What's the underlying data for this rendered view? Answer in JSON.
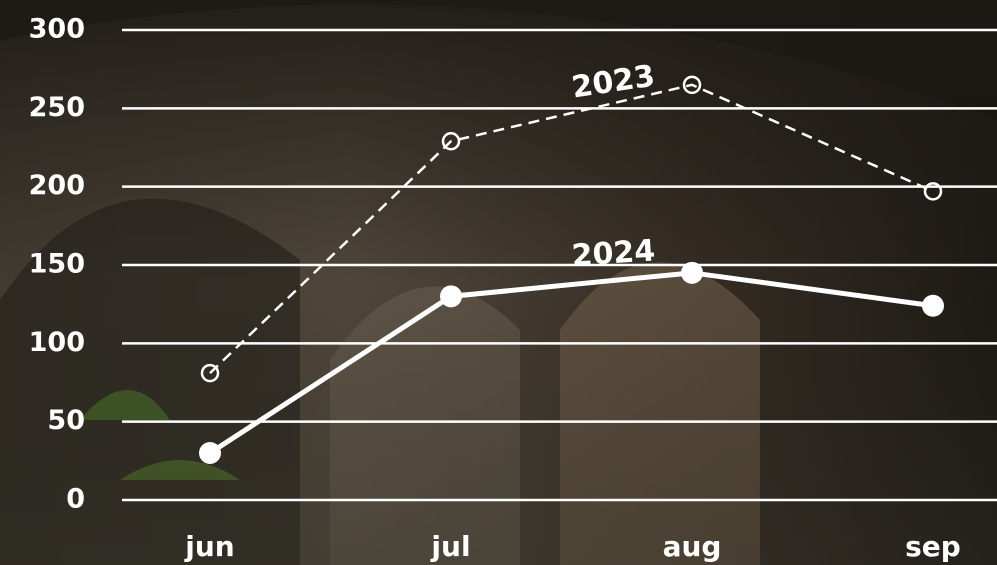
{
  "chart_data": {
    "type": "line",
    "categories": [
      "jun",
      "jul",
      "aug",
      "sep"
    ],
    "series": [
      {
        "name": "2023",
        "color": "#ffffff",
        "style": "dashed",
        "marker": "hollow",
        "values": [
          81,
          229,
          265,
          197
        ]
      },
      {
        "name": "2024",
        "color": "#ffffff",
        "style": "solid",
        "marker": "filled",
        "values": [
          30,
          130,
          145,
          124
        ]
      }
    ],
    "ylim": [
      0,
      300
    ],
    "yticks": [
      0,
      50,
      100,
      150,
      200,
      250,
      300
    ],
    "grid": true
  }
}
